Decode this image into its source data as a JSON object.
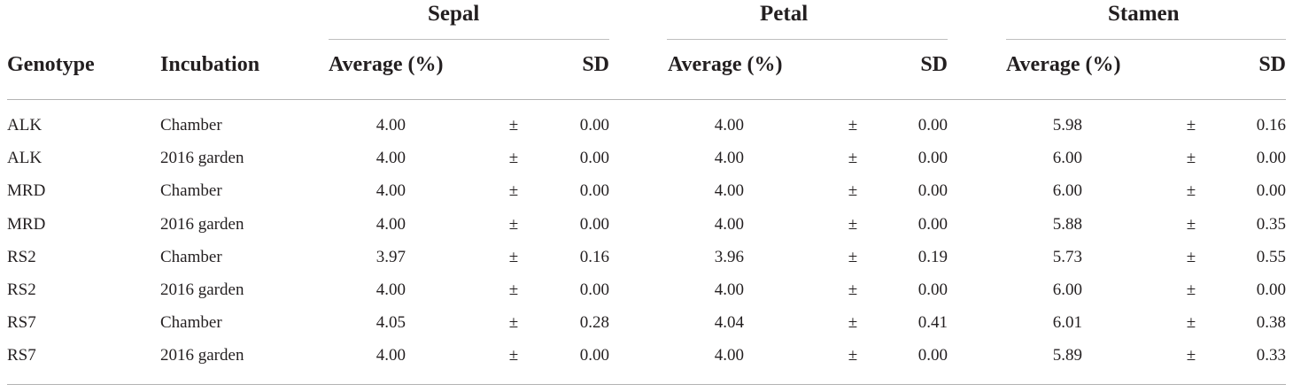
{
  "table": {
    "groups": [
      "Sepal",
      "Petal",
      "Stamen"
    ],
    "headers": {
      "genotype": "Genotype",
      "incubation": "Incubation",
      "average": "Average (%)",
      "sd": "SD"
    },
    "pm": "±",
    "rows": [
      {
        "genotype": "ALK",
        "incubation": "Chamber",
        "values": [
          [
            "4.00",
            "0.00"
          ],
          [
            "4.00",
            "0.00"
          ],
          [
            "5.98",
            "0.16"
          ]
        ]
      },
      {
        "genotype": "ALK",
        "incubation": "2016 garden",
        "values": [
          [
            "4.00",
            "0.00"
          ],
          [
            "4.00",
            "0.00"
          ],
          [
            "6.00",
            "0.00"
          ]
        ]
      },
      {
        "genotype": "MRD",
        "incubation": "Chamber",
        "values": [
          [
            "4.00",
            "0.00"
          ],
          [
            "4.00",
            "0.00"
          ],
          [
            "6.00",
            "0.00"
          ]
        ]
      },
      {
        "genotype": "MRD",
        "incubation": "2016 garden",
        "values": [
          [
            "4.00",
            "0.00"
          ],
          [
            "4.00",
            "0.00"
          ],
          [
            "5.88",
            "0.35"
          ]
        ]
      },
      {
        "genotype": "RS2",
        "incubation": "Chamber",
        "values": [
          [
            "3.97",
            "0.16"
          ],
          [
            "3.96",
            "0.19"
          ],
          [
            "5.73",
            "0.55"
          ]
        ]
      },
      {
        "genotype": "RS2",
        "incubation": "2016 garden",
        "values": [
          [
            "4.00",
            "0.00"
          ],
          [
            "4.00",
            "0.00"
          ],
          [
            "6.00",
            "0.00"
          ]
        ]
      },
      {
        "genotype": "RS7",
        "incubation": "Chamber",
        "values": [
          [
            "4.05",
            "0.28"
          ],
          [
            "4.04",
            "0.41"
          ],
          [
            "6.01",
            "0.38"
          ]
        ]
      },
      {
        "genotype": "RS7",
        "incubation": "2016 garden",
        "values": [
          [
            "4.00",
            "0.00"
          ],
          [
            "4.00",
            "0.00"
          ],
          [
            "5.89",
            "0.33"
          ]
        ]
      }
    ]
  }
}
